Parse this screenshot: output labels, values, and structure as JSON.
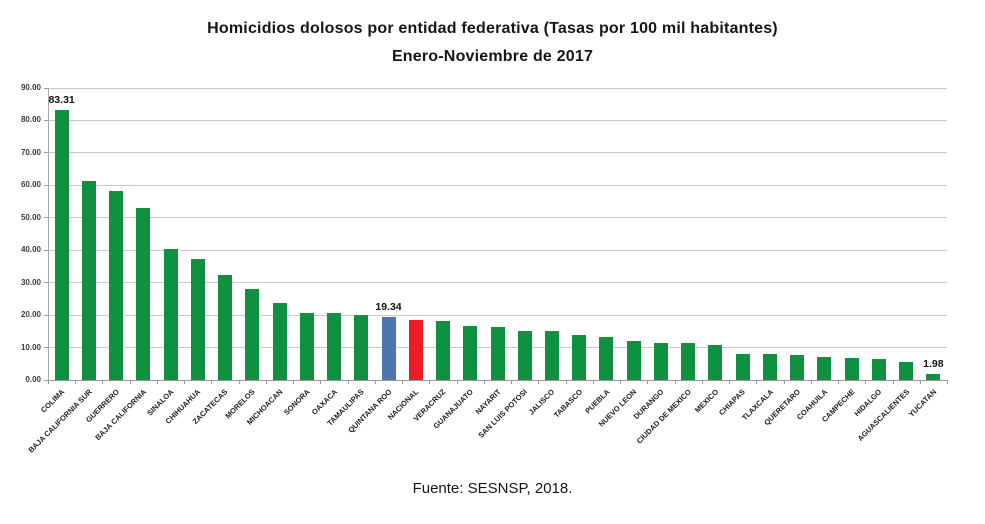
{
  "title": {
    "line1": "Homicidios dolosos por entidad federativa (Tasas por 100 mil habitantes)",
    "line2": "Enero-Noviembre de 2017"
  },
  "source": {
    "text": "Fuente: SESNSP, 2018."
  },
  "colors": {
    "bar_default": "#0f9140",
    "bar_quintana_roo": "#4b76ae",
    "bar_nacional": "#ee1c24",
    "gridline": "#c9c9c9",
    "axis": "#9a9a9a",
    "title_text": "#161616",
    "label_text": "#1c1c1c"
  },
  "chart_data": {
    "type": "bar",
    "title": "Homicidios dolosos por entidad federativa (Tasas por 100 mil habitantes)",
    "subtitle": "Enero-Noviembre de 2017",
    "xlabel": "",
    "ylabel": "",
    "ylim": [
      0,
      90
    ],
    "ytick_step": 10,
    "ytick_decimals": 2,
    "grid": true,
    "legend": "none",
    "categories": [
      "COLIMA",
      "BAJA CALIFORNIA SUR",
      "GUERRERO",
      "BAJA CALIFORNIA",
      "SINALOA",
      "CHIHUAHUA",
      "ZACATECAS",
      "MORELOS",
      "MICHOACAN",
      "SONORA",
      "OAXACA",
      "TAMAULIPAS",
      "QUINTANA ROO",
      "NACIONAL",
      "VERACRUZ",
      "GUANAJUATO",
      "NAYARIT",
      "SAN LUIS POTOSI",
      "JALISCO",
      "TABASCO",
      "PUEBLA",
      "NUEVO LEON",
      "DURANGO",
      "CIUDAD DE MEXICO",
      "MEXICO",
      "CHIAPAS",
      "TLAXCALA",
      "QUERETARO",
      "COAHUILA",
      "CAMPECHE",
      "HIDALGO",
      "AGUASCALIENTES",
      "YUCATAN"
    ],
    "values": [
      83.31,
      61.2,
      58.2,
      53.0,
      40.5,
      37.4,
      32.3,
      28.0,
      23.7,
      20.8,
      20.7,
      20.1,
      19.34,
      18.5,
      18.3,
      16.7,
      16.2,
      15.0,
      15.0,
      14.0,
      13.1,
      12.0,
      11.3,
      11.3,
      10.9,
      8.1,
      8.1,
      7.8,
      7.2,
      6.8,
      6.4,
      5.4,
      1.98
    ],
    "highlight_colors": {
      "QUINTANA ROO": "#4b76ae",
      "NACIONAL": "#ee1c24"
    },
    "data_labels": [
      {
        "category": "COLIMA",
        "text": "83.31"
      },
      {
        "category": "QUINTANA ROO",
        "text": "19.34"
      },
      {
        "category": "YUCATAN",
        "text": "1.98"
      }
    ],
    "source": "Fuente: SESNSP, 2018."
  }
}
